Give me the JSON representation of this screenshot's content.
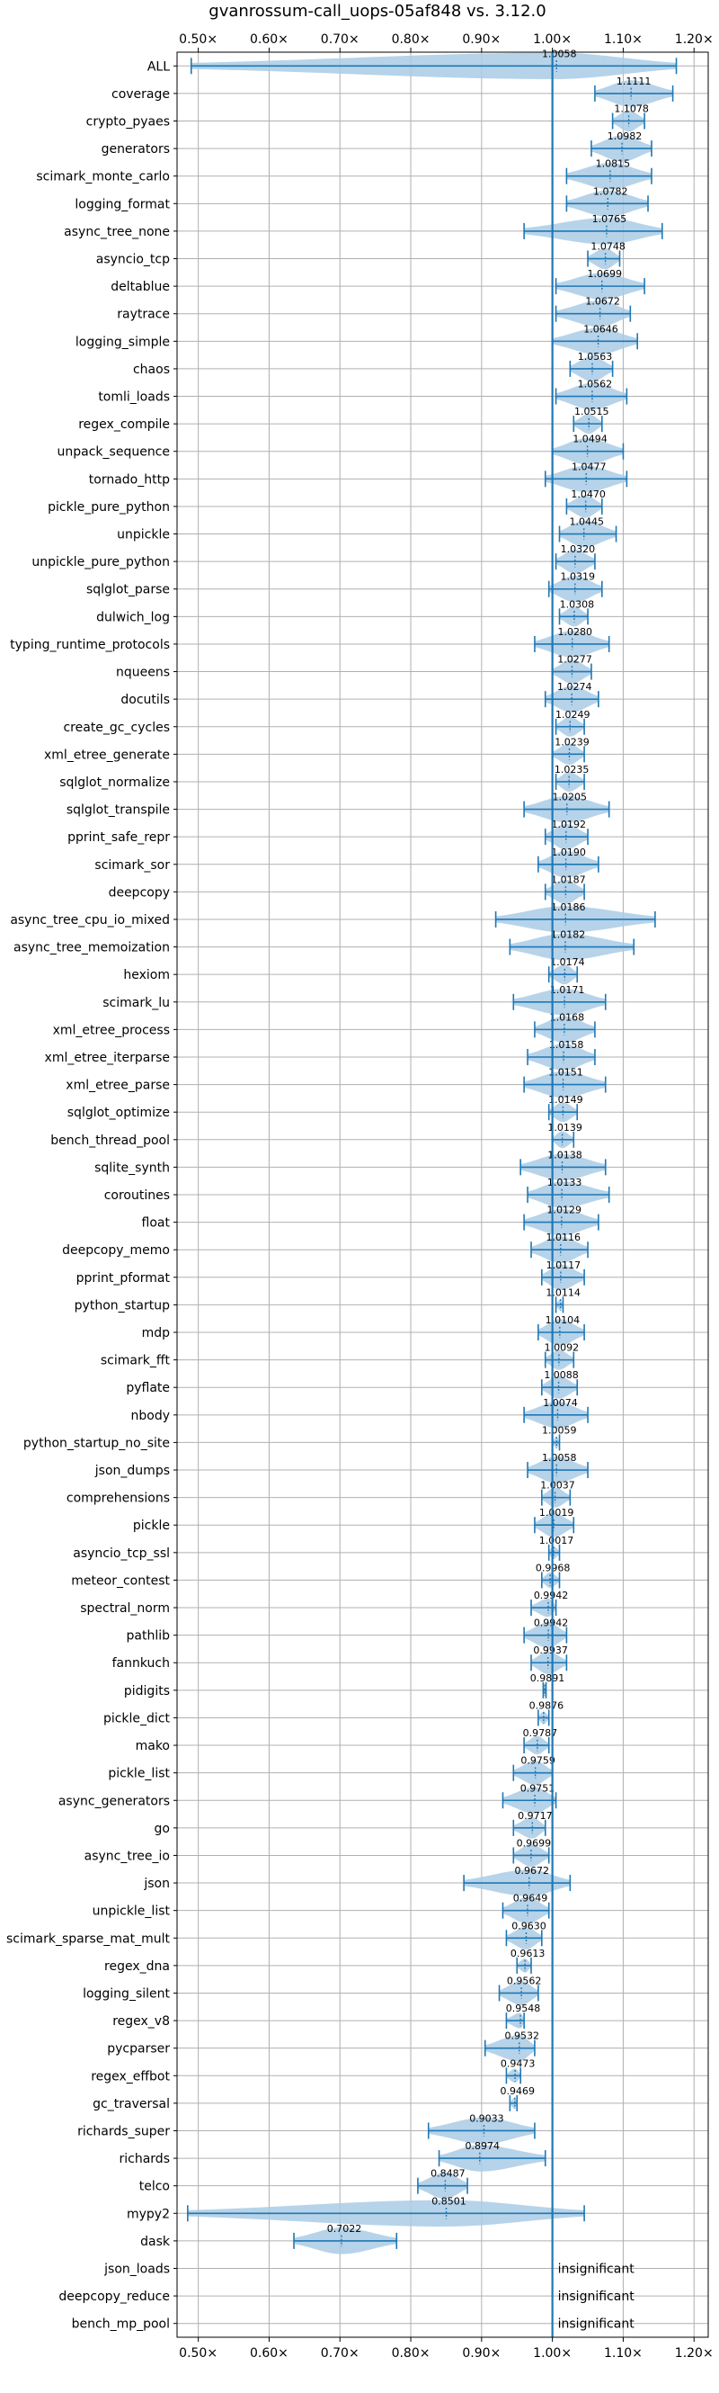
{
  "chart_data": {
    "type": "violin",
    "title": "gvanrossum-call_uops-05af848 vs. 3.12.0",
    "xlim": [
      0.47,
      1.22
    ],
    "x_ticks": [
      0.5,
      0.6,
      0.7,
      0.8,
      0.9,
      1.0,
      1.1,
      1.2
    ],
    "x_tick_labels": [
      "0.50×",
      "0.60×",
      "0.70×",
      "0.80×",
      "0.90×",
      "1.00×",
      "1.10×",
      "1.20×"
    ],
    "reference_line": 1.0,
    "grid": true,
    "colors": {
      "line": "#1f77b4",
      "violin": "#a9cbe5"
    },
    "benchmarks": [
      {
        "name": "ALL",
        "label": "1.0058",
        "med": 1.0058,
        "min": 0.49,
        "max": 1.175
      },
      {
        "name": "coverage",
        "label": "1.1111",
        "med": 1.1111,
        "min": 1.06,
        "max": 1.17
      },
      {
        "name": "crypto_pyaes",
        "label": "1.1078",
        "med": 1.1078,
        "min": 1.085,
        "max": 1.13
      },
      {
        "name": "generators",
        "label": "1.0982",
        "med": 1.0982,
        "min": 1.055,
        "max": 1.14
      },
      {
        "name": "scimark_monte_carlo",
        "label": "1.0815",
        "med": 1.0815,
        "min": 1.02,
        "max": 1.14
      },
      {
        "name": "logging_format",
        "label": "1.0782",
        "med": 1.0782,
        "min": 1.02,
        "max": 1.135
      },
      {
        "name": "async_tree_none",
        "label": "1.0765",
        "med": 1.0765,
        "min": 0.96,
        "max": 1.155
      },
      {
        "name": "asyncio_tcp",
        "label": "1.0748",
        "med": 1.0748,
        "min": 1.05,
        "max": 1.095
      },
      {
        "name": "deltablue",
        "label": "1.0699",
        "med": 1.0699,
        "min": 1.005,
        "max": 1.13
      },
      {
        "name": "raytrace",
        "label": "1.0672",
        "med": 1.0672,
        "min": 1.005,
        "max": 1.11
      },
      {
        "name": "logging_simple",
        "label": "1.0646",
        "med": 1.0646,
        "min": 1.0,
        "max": 1.12
      },
      {
        "name": "chaos",
        "label": "1.0563",
        "med": 1.0563,
        "min": 1.025,
        "max": 1.085
      },
      {
        "name": "tomli_loads",
        "label": "1.0562",
        "med": 1.0562,
        "min": 1.005,
        "max": 1.105
      },
      {
        "name": "regex_compile",
        "label": "1.0515",
        "med": 1.0515,
        "min": 1.03,
        "max": 1.07
      },
      {
        "name": "unpack_sequence",
        "label": "1.0494",
        "med": 1.0494,
        "min": 1.0,
        "max": 1.1
      },
      {
        "name": "tornado_http",
        "label": "1.0477",
        "med": 1.0477,
        "min": 0.99,
        "max": 1.105
      },
      {
        "name": "pickle_pure_python",
        "label": "1.0470",
        "med": 1.047,
        "min": 1.02,
        "max": 1.07
      },
      {
        "name": "unpickle",
        "label": "1.0445",
        "med": 1.0445,
        "min": 1.01,
        "max": 1.09
      },
      {
        "name": "unpickle_pure_python",
        "label": "1.0320",
        "med": 1.032,
        "min": 1.005,
        "max": 1.06
      },
      {
        "name": "sqlglot_parse",
        "label": "1.0319",
        "med": 1.0319,
        "min": 0.995,
        "max": 1.07
      },
      {
        "name": "dulwich_log",
        "label": "1.0308",
        "med": 1.0308,
        "min": 1.01,
        "max": 1.05
      },
      {
        "name": "typing_runtime_protocols",
        "label": "1.0280",
        "med": 1.028,
        "min": 0.975,
        "max": 1.08
      },
      {
        "name": "nqueens",
        "label": "1.0277",
        "med": 1.0277,
        "min": 1.0,
        "max": 1.055
      },
      {
        "name": "docutils",
        "label": "1.0274",
        "med": 1.0274,
        "min": 0.99,
        "max": 1.065
      },
      {
        "name": "create_gc_cycles",
        "label": "1.0249",
        "med": 1.0249,
        "min": 1.005,
        "max": 1.045
      },
      {
        "name": "xml_etree_generate",
        "label": "1.0239",
        "med": 1.0239,
        "min": 1.0,
        "max": 1.045
      },
      {
        "name": "sqlglot_normalize",
        "label": "1.0235",
        "med": 1.0235,
        "min": 1.005,
        "max": 1.045
      },
      {
        "name": "sqlglot_transpile",
        "label": "1.0205",
        "med": 1.0205,
        "min": 0.96,
        "max": 1.08
      },
      {
        "name": "pprint_safe_repr",
        "label": "1.0192",
        "med": 1.0192,
        "min": 0.99,
        "max": 1.05
      },
      {
        "name": "scimark_sor",
        "label": "1.0190",
        "med": 1.019,
        "min": 0.98,
        "max": 1.065
      },
      {
        "name": "deepcopy",
        "label": "1.0187",
        "med": 1.0187,
        "min": 0.99,
        "max": 1.045
      },
      {
        "name": "async_tree_cpu_io_mixed",
        "label": "1.0186",
        "med": 1.0186,
        "min": 0.92,
        "max": 1.145
      },
      {
        "name": "async_tree_memoization",
        "label": "1.0182",
        "med": 1.0182,
        "min": 0.94,
        "max": 1.115
      },
      {
        "name": "hexiom",
        "label": "1.0174",
        "med": 1.0174,
        "min": 0.995,
        "max": 1.035
      },
      {
        "name": "scimark_lu",
        "label": "1.0171",
        "med": 1.0171,
        "min": 0.945,
        "max": 1.075
      },
      {
        "name": "xml_etree_process",
        "label": "1.0168",
        "med": 1.0168,
        "min": 0.975,
        "max": 1.06
      },
      {
        "name": "xml_etree_iterparse",
        "label": "1.0158",
        "med": 1.0158,
        "min": 0.965,
        "max": 1.06
      },
      {
        "name": "xml_etree_parse",
        "label": "1.0151",
        "med": 1.0151,
        "min": 0.96,
        "max": 1.075
      },
      {
        "name": "sqlglot_optimize",
        "label": "1.0149",
        "med": 1.0149,
        "min": 0.995,
        "max": 1.035
      },
      {
        "name": "bench_thread_pool",
        "label": "1.0139",
        "med": 1.0139,
        "min": 1.0,
        "max": 1.03
      },
      {
        "name": "sqlite_synth",
        "label": "1.0138",
        "med": 1.0138,
        "min": 0.955,
        "max": 1.075
      },
      {
        "name": "coroutines",
        "label": "1.0133",
        "med": 1.0133,
        "min": 0.965,
        "max": 1.08
      },
      {
        "name": "float",
        "label": "1.0129",
        "med": 1.0129,
        "min": 0.96,
        "max": 1.065
      },
      {
        "name": "deepcopy_memo",
        "label": "1.0116",
        "med": 1.0116,
        "min": 0.97,
        "max": 1.05
      },
      {
        "name": "pprint_pformat",
        "label": "1.0117",
        "med": 1.0117,
        "min": 0.985,
        "max": 1.045
      },
      {
        "name": "python_startup",
        "label": "1.0114",
        "med": 1.0114,
        "min": 1.005,
        "max": 1.015
      },
      {
        "name": "mdp",
        "label": "1.0104",
        "med": 1.0104,
        "min": 0.98,
        "max": 1.045
      },
      {
        "name": "scimark_fft",
        "label": "1.0092",
        "med": 1.0092,
        "min": 0.99,
        "max": 1.03
      },
      {
        "name": "pyflate",
        "label": "1.0088",
        "med": 1.0088,
        "min": 0.985,
        "max": 1.035
      },
      {
        "name": "nbody",
        "label": "1.0074",
        "med": 1.0074,
        "min": 0.96,
        "max": 1.05
      },
      {
        "name": "python_startup_no_site",
        "label": "1.0059",
        "med": 1.0059,
        "min": 1.0,
        "max": 1.01
      },
      {
        "name": "json_dumps",
        "label": "1.0058",
        "med": 1.0058,
        "min": 0.965,
        "max": 1.05
      },
      {
        "name": "comprehensions",
        "label": "1.0037",
        "med": 1.0037,
        "min": 0.985,
        "max": 1.025
      },
      {
        "name": "pickle",
        "label": "1.0019",
        "med": 1.0019,
        "min": 0.975,
        "max": 1.03
      },
      {
        "name": "asyncio_tcp_ssl",
        "label": "1.0017",
        "med": 1.0017,
        "min": 0.995,
        "max": 1.01
      },
      {
        "name": "meteor_contest",
        "label": "0.9968",
        "med": 0.9968,
        "min": 0.985,
        "max": 1.01
      },
      {
        "name": "spectral_norm",
        "label": "0.9942",
        "med": 0.9942,
        "min": 0.97,
        "max": 1.005
      },
      {
        "name": "pathlib",
        "label": "0.9942",
        "med": 0.9942,
        "min": 0.96,
        "max": 1.02
      },
      {
        "name": "fannkuch",
        "label": "0.9937",
        "med": 0.9937,
        "min": 0.97,
        "max": 1.02
      },
      {
        "name": "pidigits",
        "label": "0.9891",
        "med": 0.9891,
        "min": 0.987,
        "max": 0.991
      },
      {
        "name": "pickle_dict",
        "label": "0.9876",
        "med": 0.9876,
        "min": 0.98,
        "max": 0.995
      },
      {
        "name": "mako",
        "label": "0.9787",
        "med": 0.9787,
        "min": 0.96,
        "max": 0.995
      },
      {
        "name": "pickle_list",
        "label": "0.9759",
        "med": 0.9759,
        "min": 0.945,
        "max": 1.0
      },
      {
        "name": "async_generators",
        "label": "0.9751",
        "med": 0.9751,
        "min": 0.93,
        "max": 1.005
      },
      {
        "name": "go",
        "label": "0.9717",
        "med": 0.9717,
        "min": 0.945,
        "max": 0.99
      },
      {
        "name": "async_tree_io",
        "label": "0.9699",
        "med": 0.9699,
        "min": 0.945,
        "max": 0.995
      },
      {
        "name": "json",
        "label": "0.9672",
        "med": 0.9672,
        "min": 0.875,
        "max": 1.025
      },
      {
        "name": "unpickle_list",
        "label": "0.9649",
        "med": 0.9649,
        "min": 0.93,
        "max": 0.995
      },
      {
        "name": "scimark_sparse_mat_mult",
        "label": "0.9630",
        "med": 0.963,
        "min": 0.935,
        "max": 0.985
      },
      {
        "name": "regex_dna",
        "label": "0.9613",
        "med": 0.9613,
        "min": 0.95,
        "max": 0.97
      },
      {
        "name": "logging_silent",
        "label": "0.9562",
        "med": 0.9562,
        "min": 0.925,
        "max": 0.98
      },
      {
        "name": "regex_v8",
        "label": "0.9548",
        "med": 0.9548,
        "min": 0.935,
        "max": 0.96
      },
      {
        "name": "pycparser",
        "label": "0.9532",
        "med": 0.9532,
        "min": 0.905,
        "max": 0.975
      },
      {
        "name": "regex_effbot",
        "label": "0.9473",
        "med": 0.9473,
        "min": 0.935,
        "max": 0.955
      },
      {
        "name": "gc_traversal",
        "label": "0.9469",
        "med": 0.9469,
        "min": 0.94,
        "max": 0.95
      },
      {
        "name": "richards_super",
        "label": "0.9033",
        "med": 0.9033,
        "min": 0.825,
        "max": 0.975
      },
      {
        "name": "richards",
        "label": "0.8974",
        "med": 0.8974,
        "min": 0.84,
        "max": 0.99
      },
      {
        "name": "telco",
        "label": "0.8487",
        "med": 0.8487,
        "min": 0.81,
        "max": 0.88
      },
      {
        "name": "mypy2",
        "label": "0.8501",
        "med": 0.8501,
        "min": 0.485,
        "max": 1.045
      },
      {
        "name": "dask",
        "label": "0.7022",
        "med": 0.7022,
        "min": 0.635,
        "max": 0.78
      },
      {
        "name": "json_loads",
        "note": "insignificant"
      },
      {
        "name": "deepcopy_reduce",
        "note": "insignificant"
      },
      {
        "name": "bench_mp_pool",
        "note": "insignificant"
      }
    ]
  }
}
